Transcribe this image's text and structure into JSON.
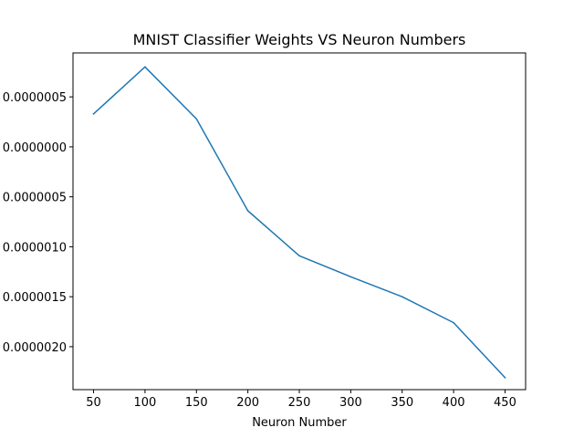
{
  "chart_data": {
    "type": "line",
    "title": "MNIST Classifier Weights VS Neuron Numbers",
    "xlabel": "Neuron Number",
    "ylabel": "",
    "x": [
      50,
      100,
      150,
      200,
      250,
      300,
      350,
      400,
      450
    ],
    "series": [
      {
        "values": [
          3.3e-07,
          8e-07,
          2.8e-07,
          -6.4e-07,
          -1.09e-06,
          -1.3e-06,
          -1.5e-06,
          -1.76e-06,
          -2.31e-06
        ],
        "color": "#1f77b4"
      }
    ],
    "xlim": [
      30,
      470
    ],
    "ylim": [
      -2.43e-06,
      9.4e-07
    ],
    "xticks": [
      50,
      100,
      150,
      200,
      250,
      300,
      350,
      400,
      450
    ],
    "yticks": [
      5e-07,
      0.0,
      -5e-07,
      -1e-06,
      -1.5e-06,
      -2e-06
    ],
    "ytick_labels": [
      "0.0000005",
      "0.0000000",
      "0.0000005",
      "0.0000010",
      "0.0000015",
      "0.0000020"
    ],
    "grid": false,
    "legend": "none"
  }
}
